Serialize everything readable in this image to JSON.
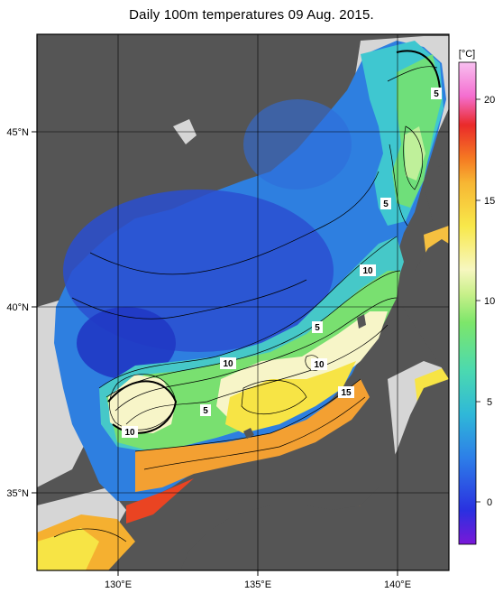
{
  "title": "Daily 100m temperatures 09 Aug. 2015.",
  "longitude_labels": [
    "130°E",
    "135°E",
    "140°E"
  ],
  "latitude_labels": [
    "45°N",
    "40°N",
    "35°N"
  ],
  "contour_labels": [
    "5",
    "5",
    "10",
    "5",
    "10",
    "10",
    "5",
    "10",
    "15",
    "10"
  ],
  "colorbar": {
    "unit": "[°C]",
    "ticks": [
      "20",
      "15",
      "10",
      "5",
      "0"
    ],
    "colors": [
      "#7a18d8",
      "#2a30e0",
      "#2d7fe8",
      "#2fb8d8",
      "#4bd9b0",
      "#7de66a",
      "#c9f08a",
      "#f7f7c0",
      "#f8e84a",
      "#f7b633",
      "#f57a22",
      "#ea2a2a",
      "#f46ed0",
      "#f8c0f0"
    ]
  },
  "colors": {
    "land": "#555555",
    "no_data": "#d6d6d6",
    "cold_water": "#2f56c8",
    "warm_water": "#f6c23a"
  }
}
